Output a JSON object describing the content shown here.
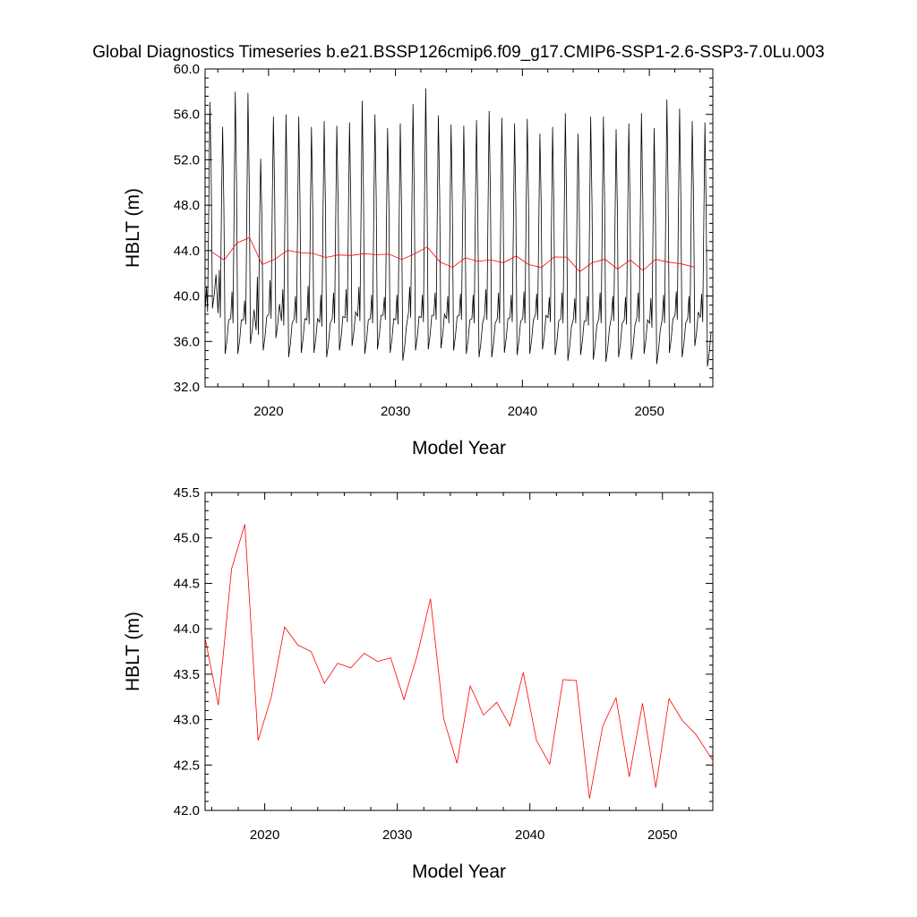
{
  "title": "Global Diagnostics Timeseries b.e21.BSSP126cmip6.f09_g17.CMIP6-SSP1-2.6-SSP3-7.0Lu.003",
  "colors": {
    "monthly": "#000000",
    "annual": "#ff0000",
    "axis": "#000000"
  },
  "chart_data": [
    {
      "type": "line",
      "ylabel": "HBLT (m)",
      "xlabel": "Model Year",
      "xlim": [
        2015,
        2055
      ],
      "ylim": [
        32.0,
        60.0
      ],
      "xticks": [
        2020,
        2030,
        2040,
        2050
      ],
      "xtick_labels": [
        "2020",
        "2030",
        "2040",
        "2050"
      ],
      "yticks": [
        32,
        36,
        40,
        44,
        48,
        52,
        56,
        60
      ],
      "ytick_labels": [
        "32.0",
        "36.0",
        "40.0",
        "44.0",
        "48.0",
        "52.0",
        "56.0",
        "60.0"
      ],
      "series": [
        {
          "kind": "monthly",
          "note": "monthly mean, seasonal cycle; annual extremes per year",
          "year_start": 2015,
          "annual_peaks": [
            57.1,
            54.9,
            58.0,
            57.9,
            52.1,
            55.8,
            56.0,
            55.8,
            54.9,
            55.4,
            55.0,
            55.3,
            57.2,
            56.0,
            54.8,
            55.2,
            56.9,
            58.3,
            55.9,
            55.1,
            55.0,
            55.5,
            56.3,
            55.7,
            55.2,
            55.6,
            54.3,
            54.9,
            56.1,
            54.3,
            55.8,
            55.8,
            54.7,
            55.2,
            56.1,
            54.8,
            57.3,
            56.5,
            55.4,
            55.3
          ],
          "annual_troughs": [
            38.9,
            34.9,
            34.9,
            35.8,
            35.2,
            36.3,
            34.6,
            35.0,
            35.0,
            34.6,
            35.2,
            35.6,
            34.9,
            35.3,
            35.0,
            34.3,
            35.2,
            35.3,
            35.4,
            35.2,
            34.9,
            34.6,
            34.6,
            35.0,
            34.8,
            34.9,
            35.3,
            34.8,
            34.3,
            34.8,
            34.4,
            34.2,
            34.6,
            34.4,
            34.9,
            34.0,
            35.0,
            34.6,
            35.6,
            33.8
          ],
          "secondary_peaks": [
            40.8,
            42.3,
            40.4,
            39.6,
            41.7,
            41.4,
            40.6,
            40.0,
            40.9,
            40.1,
            40.3,
            40.6,
            40.8,
            40.1,
            39.9,
            40.1,
            40.8,
            40.1,
            40.3,
            40.0,
            40.2,
            40.1,
            40.6,
            40.3,
            40.1,
            40.4,
            40.2,
            39.9,
            40.3,
            39.8,
            40.0,
            40.3,
            40.0,
            39.9,
            40.3,
            39.8,
            40.1,
            40.4,
            40.0,
            40.2
          ],
          "secondary_troughs": [
            39.0,
            38.5,
            38.0,
            37.9,
            37.0,
            38.4,
            37.8,
            38.0,
            37.9,
            37.7,
            38.0,
            38.1,
            38.2,
            38.0,
            38.3,
            37.9,
            38.5,
            38.1,
            38.3,
            38.0,
            38.3,
            38.0,
            38.3,
            38.0,
            38.1,
            38.0,
            38.3,
            38.1,
            38.0,
            38.0,
            37.8,
            38.0,
            38.2,
            37.9,
            38.1,
            37.6,
            38.0,
            38.3,
            38.0,
            38.1
          ]
        },
        {
          "kind": "annual",
          "x": [
            2015.5,
            2016.5,
            2017.5,
            2018.5,
            2019.5,
            2020.5,
            2021.5,
            2022.5,
            2023.5,
            2024.5,
            2025.5,
            2026.5,
            2027.5,
            2028.5,
            2029.5,
            2030.5,
            2031.5,
            2032.5,
            2033.5,
            2034.5,
            2035.5,
            2036.5,
            2037.5,
            2038.5,
            2039.5,
            2040.5,
            2041.5,
            2042.5,
            2043.5,
            2044.5,
            2045.5,
            2046.5,
            2047.5,
            2048.5,
            2049.5,
            2050.5,
            2051.5,
            2052.5,
            2053.5
          ],
          "values": [
            43.9,
            43.16,
            44.66,
            45.15,
            42.77,
            43.25,
            44.02,
            43.82,
            43.75,
            43.4,
            43.62,
            43.57,
            43.73,
            43.64,
            43.68,
            43.22,
            43.71,
            44.33,
            43.01,
            42.52,
            43.37,
            43.05,
            43.19,
            42.93,
            43.52,
            42.77,
            42.51,
            43.44,
            43.43,
            42.13,
            42.93,
            43.24,
            42.37,
            43.18,
            42.25,
            43.23,
            42.99,
            42.84,
            42.55
          ]
        }
      ]
    },
    {
      "type": "line",
      "ylabel": "HBLT (m)",
      "xlabel": "Model Year",
      "xlim": [
        2015.5,
        2053.8
      ],
      "ylim": [
        42.0,
        45.5
      ],
      "xticks": [
        2020,
        2030,
        2040,
        2050
      ],
      "xtick_labels": [
        "2020",
        "2030",
        "2040",
        "2050"
      ],
      "yticks": [
        42.0,
        42.5,
        43.0,
        43.5,
        44.0,
        44.5,
        45.0,
        45.5
      ],
      "ytick_labels": [
        "42.0",
        "42.5",
        "43.0",
        "43.5",
        "44.0",
        "44.5",
        "45.0",
        "45.5"
      ],
      "series": [
        {
          "kind": "annual",
          "x": [
            2015.5,
            2016.5,
            2017.5,
            2018.5,
            2019.5,
            2020.5,
            2021.5,
            2022.5,
            2023.5,
            2024.5,
            2025.5,
            2026.5,
            2027.5,
            2028.5,
            2029.5,
            2030.5,
            2031.5,
            2032.5,
            2033.5,
            2034.5,
            2035.5,
            2036.5,
            2037.5,
            2038.5,
            2039.5,
            2040.5,
            2041.5,
            2042.5,
            2043.5,
            2044.5,
            2045.5,
            2046.5,
            2047.5,
            2048.5,
            2049.5,
            2050.5,
            2051.5,
            2052.5,
            2053.8
          ],
          "values": [
            43.9,
            43.16,
            44.66,
            45.15,
            42.77,
            43.25,
            44.02,
            43.82,
            43.75,
            43.4,
            43.62,
            43.57,
            43.73,
            43.64,
            43.68,
            43.22,
            43.71,
            44.33,
            43.01,
            42.52,
            43.37,
            43.05,
            43.19,
            42.93,
            43.52,
            42.77,
            42.51,
            43.44,
            43.43,
            42.13,
            42.93,
            43.24,
            42.37,
            43.18,
            42.25,
            43.23,
            42.99,
            42.84,
            42.55
          ]
        }
      ]
    }
  ]
}
